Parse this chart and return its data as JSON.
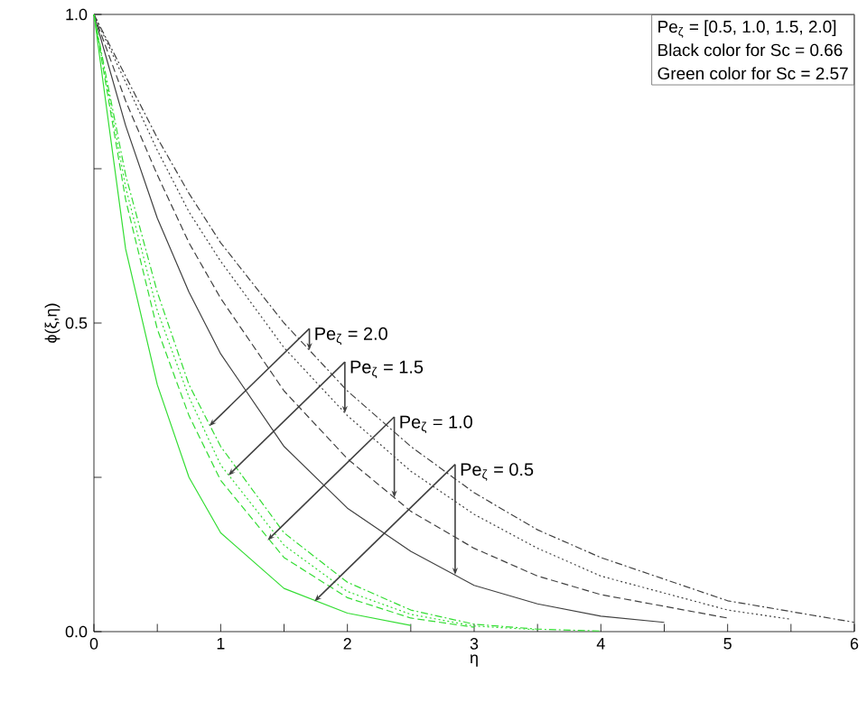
{
  "chart_data": {
    "type": "line",
    "xlabel": "η",
    "ylabel": "ϕ(ξ,η)",
    "xlim": [
      0,
      6
    ],
    "ylim": [
      0,
      1
    ],
    "xticks": [
      0,
      {
        "value": 0.5,
        "label": null
      },
      1,
      {
        "value": 1.5,
        "label": null
      },
      2,
      {
        "value": 2.5,
        "label": null
      },
      3,
      {
        "value": 3.5,
        "label": null
      },
      4,
      {
        "value": 4.5,
        "label": null
      },
      5,
      {
        "value": 5.5,
        "label": null
      },
      6
    ],
    "yticks": [
      {
        "value": 0,
        "label": "0.0"
      },
      {
        "value": 0.25,
        "label": null
      },
      {
        "value": 0.5,
        "label": "0.5"
      },
      {
        "value": 0.75,
        "label": null
      },
      {
        "value": 1,
        "label": "1.0"
      }
    ],
    "grid": false,
    "marker": "none",
    "x": [
      0,
      0.25,
      0.5,
      0.75,
      1,
      1.5,
      2,
      2.5,
      3,
      3.5,
      4,
      5,
      6
    ],
    "series": [
      {
        "color": "#404040",
        "line_style": "dashdot",
        "values": [
          1,
          0.9,
          0.8,
          0.71,
          0.63,
          0.5,
          0.39,
          0.3,
          0.225,
          0.165,
          0.12,
          0.05,
          0.015
        ]
      },
      {
        "color": "#404040",
        "line_style": "dotted",
        "x": [
          0,
          0.25,
          0.5,
          0.75,
          1,
          1.5,
          2,
          2.5,
          3,
          3.5,
          4,
          5,
          5.5
        ],
        "values": [
          1,
          0.89,
          0.78,
          0.68,
          0.6,
          0.46,
          0.35,
          0.26,
          0.19,
          0.135,
          0.09,
          0.035,
          0.02
        ]
      },
      {
        "color": "#404040",
        "line_style": "dashed",
        "x": [
          0,
          0.25,
          0.5,
          0.75,
          1,
          1.5,
          2,
          2.5,
          3,
          3.5,
          4,
          5
        ],
        "values": [
          1,
          0.86,
          0.74,
          0.63,
          0.54,
          0.39,
          0.28,
          0.195,
          0.135,
          0.09,
          0.06,
          0.022
        ]
      },
      {
        "color": "#404040",
        "line_style": "solid",
        "x": [
          0,
          0.25,
          0.5,
          0.75,
          1,
          1.5,
          2,
          2.5,
          3,
          3.5,
          4,
          4.5
        ],
        "values": [
          1,
          0.82,
          0.67,
          0.55,
          0.45,
          0.3,
          0.2,
          0.13,
          0.075,
          0.045,
          0.025,
          0.015
        ]
      },
      {
        "color": "#33dd33",
        "line_style": "dashdot",
        "x": [
          0,
          0.25,
          0.5,
          0.75,
          1,
          1.5,
          2,
          2.5,
          3,
          3.5,
          4
        ],
        "values": [
          1,
          0.74,
          0.55,
          0.4,
          0.3,
          0.16,
          0.08,
          0.035,
          0.012,
          0.004,
          0.001
        ]
      },
      {
        "color": "#33dd33",
        "line_style": "dotted",
        "x": [
          0,
          0.25,
          0.5,
          0.75,
          1,
          1.5,
          2,
          2.5,
          3,
          3.5
        ],
        "values": [
          1,
          0.72,
          0.52,
          0.38,
          0.27,
          0.14,
          0.065,
          0.028,
          0.009,
          0.003
        ]
      },
      {
        "color": "#33dd33",
        "line_style": "dashed",
        "x": [
          0,
          0.25,
          0.5,
          0.75,
          1,
          1.5,
          2,
          2.5,
          3
        ],
        "values": [
          1,
          0.7,
          0.49,
          0.35,
          0.245,
          0.12,
          0.055,
          0.022,
          0.007
        ]
      },
      {
        "color": "#33dd33",
        "line_style": "solid",
        "x": [
          0,
          0.25,
          0.5,
          0.75,
          1,
          1.5,
          2,
          2.5
        ],
        "values": [
          1,
          0.62,
          0.4,
          0.25,
          0.16,
          0.07,
          0.03,
          0.01
        ]
      }
    ],
    "annotations": [
      {
        "text": "Pe$_{ζ}$ = 2.0",
        "x": 1.7,
        "y": 0.456
      },
      {
        "text": "Pe$_{ζ}$ = 1.5",
        "x": 1.98,
        "y": 0.354
      },
      {
        "text": "Pe$_{ζ}$ = 1.0",
        "x": 2.37,
        "y": 0.217
      },
      {
        "text": "Pe$_{ζ}$ = 0.5",
        "x": 2.85,
        "y": 0.092
      },
      "Pe$_{ζ}$ = [0.5, 1.0, 1.5, 2.0]",
      "Black color for Sc = 0.66",
      "Green color for Sc = 2.57"
    ]
  }
}
